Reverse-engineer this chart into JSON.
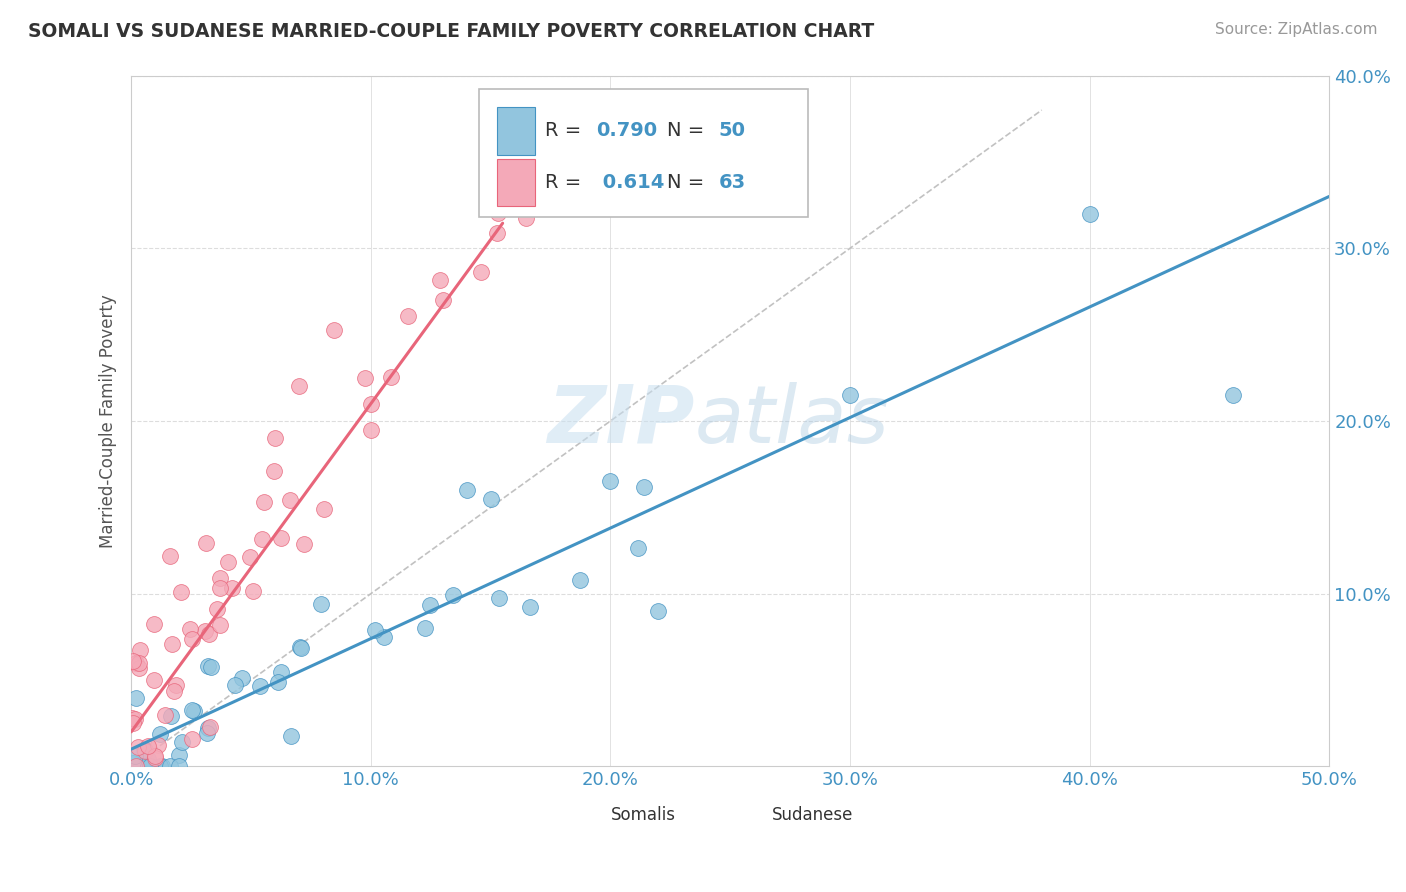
{
  "title": "SOMALI VS SUDANESE MARRIED-COUPLE FAMILY POVERTY CORRELATION CHART",
  "source": "Source: ZipAtlas.com",
  "ylabel": "Married-Couple Family Poverty",
  "xlim": [
    0.0,
    0.5
  ],
  "ylim": [
    0.0,
    0.4
  ],
  "xticks": [
    0.0,
    0.1,
    0.2,
    0.3,
    0.4,
    0.5
  ],
  "yticks": [
    0.0,
    0.1,
    0.2,
    0.3,
    0.4
  ],
  "somali_color": "#92C5DE",
  "sudanese_color": "#F4A9B8",
  "somali_line_color": "#4393C3",
  "sudanese_line_color": "#E8657A",
  "R_somali": 0.79,
  "N_somali": 50,
  "R_sudanese": 0.614,
  "N_sudanese": 63,
  "somali_line_slope": 0.64,
  "somali_line_intercept": 0.01,
  "sudanese_line_slope": 1.9,
  "sudanese_line_intercept": 0.02,
  "ref_line_end": 0.38,
  "watermark_zip_color": "#C8DFF0",
  "watermark_atlas_color": "#A8C8E0"
}
